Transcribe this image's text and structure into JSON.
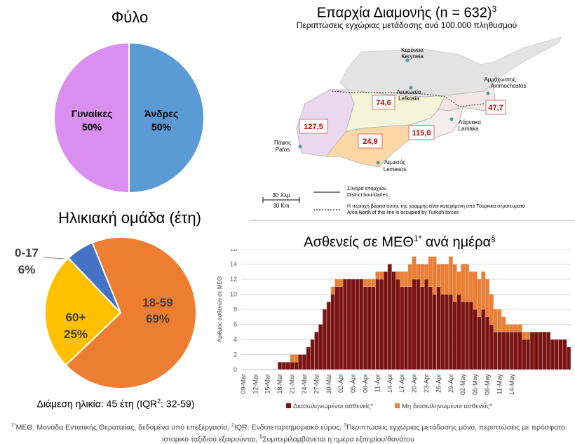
{
  "sex_panel": {
    "title": "Φύλο",
    "chart_data": {
      "type": "pie",
      "slices": [
        {
          "label": "Άνδρες",
          "value": 50,
          "pct_label": "50%",
          "color": "#5b9bd5"
        },
        {
          "label": "Γυναίκες",
          "value": 50,
          "pct_label": "50%",
          "color": "#da8ff0"
        }
      ]
    }
  },
  "age_panel": {
    "title": "Ηλικιακή ομάδα (έτη)",
    "chart_data": {
      "type": "pie",
      "slices": [
        {
          "label": "18-59",
          "value": 69,
          "pct_label": "69%",
          "color": "#ed7d31"
        },
        {
          "label": "60+",
          "value": 25,
          "pct_label": "25%",
          "color": "#ffc000"
        },
        {
          "label": "0-17",
          "value": 6,
          "pct_label": "6%",
          "color": "#4472c4"
        }
      ]
    },
    "median_text": "Διάμεση ηλικία: 45 έτη (IQR",
    "median_sup": "2",
    "median_tail": ": 32-59)"
  },
  "map_panel": {
    "title": "Επαρχία Διαμονής (n = 632)",
    "title_sup": "3",
    "subtitle": "Περιπτώσεις εγχώριας μετάδοσης ανά 100.000 πληθυσμού",
    "districts": [
      {
        "name_gr": "Κερύνεια",
        "name_en": "Keryneia",
        "rate": ""
      },
      {
        "name_gr": "Λευκωσία",
        "name_en": "Lefkosia",
        "rate": "74,6"
      },
      {
        "name_gr": "Αμμόχωστος",
        "name_en": "Ammochostos",
        "rate": "47,7"
      },
      {
        "name_gr": "Λάρνακα",
        "name_en": "Larnaka",
        "rate": "115,0"
      },
      {
        "name_gr": "Λεμεσός",
        "name_en": "Lemesos",
        "rate": "24,9"
      },
      {
        "name_gr": "Πάφος",
        "name_en": "Pafos",
        "rate": "127,5"
      }
    ],
    "scale_km_gr": "30 Χλμ",
    "scale_km_en": "30 Km",
    "legend_boundary_gr": "Σύνορα επαρχιών",
    "legend_boundary_en": "District boundaries",
    "legend_occupied_gr": "Η περιοχή βόρεια αυτής της γραμμής είναι κατεχόμενη από Τουρκικά στρατεύματα",
    "legend_occupied_en": "Area North of this line is occupied by Turkish forces"
  },
  "icu_panel": {
    "title": "Ασθενείς σε ΜΕΘ",
    "title_sup": "1*",
    "title_tail": " ανά ημέρα",
    "title_sup2": "§",
    "chart_data": {
      "type": "bar",
      "stacked": true,
      "ylabel": "Αριθμός ασθενών σε ΜΕΘ",
      "ylim": [
        0,
        16
      ],
      "yticks": [
        0,
        2,
        4,
        6,
        8,
        10,
        12,
        14,
        16
      ],
      "xtick_labels": [
        "09-Mar",
        "12-Mar",
        "15-Mar",
        "18-Mar",
        "21-Mar",
        "24-Mar",
        "27-Mar",
        "30-Mar",
        "02-Apr",
        "05-Apr",
        "08-Apr",
        "11-Apr",
        "14-Apr",
        "17-Apr",
        "20-Apr",
        "23-Apr",
        "26-Apr",
        "29-Apr",
        "02-May",
        "05-May",
        "08-May",
        "11-May",
        "14-May"
      ],
      "legend_position": "bottom",
      "series": [
        {
          "name": "Διασωληνωμένοι ασθενείς*",
          "color": "#7b1212",
          "values": [
            0,
            0,
            0,
            0,
            0,
            0,
            0,
            0,
            0,
            1,
            1,
            1,
            1,
            1,
            2,
            2,
            3,
            4,
            5,
            6,
            8,
            9,
            10,
            11,
            11,
            12,
            12,
            12,
            12,
            12,
            11,
            11,
            11,
            12,
            12,
            13,
            14,
            13,
            12,
            11,
            11,
            11,
            12,
            12,
            11,
            12,
            11,
            10,
            11,
            10,
            10,
            10,
            9,
            10,
            9,
            9,
            9,
            8,
            7,
            8,
            7,
            6,
            5,
            5,
            5,
            5,
            5,
            5,
            5,
            4,
            4,
            5,
            5,
            5,
            5,
            5,
            4,
            4,
            4,
            4,
            3
          ]
        },
        {
          "name": "Μη διασωληνωμένοι ασθενείς*",
          "color": "#ed7d31",
          "values": [
            0,
            0,
            0,
            0,
            0,
            0,
            0,
            0,
            0,
            0,
            0,
            0,
            1,
            1,
            0,
            0,
            0,
            0,
            0,
            0,
            0,
            0,
            1,
            1,
            1,
            0,
            0,
            0,
            0,
            0,
            1,
            1,
            1,
            1,
            1,
            0,
            0,
            0,
            1,
            2,
            2,
            3,
            3,
            2,
            3,
            2,
            4,
            5,
            3,
            4,
            4,
            5,
            5,
            3,
            5,
            5,
            4,
            5,
            5,
            5,
            5,
            4,
            3,
            3,
            2,
            1,
            1,
            1,
            1,
            1,
            1,
            0,
            0,
            0,
            0,
            0,
            0,
            0,
            0,
            0,
            0
          ]
        }
      ]
    }
  },
  "footnote": {
    "m1": "1*",
    "t1": "ΜΕΘ: Μονάδα Εντατικής Θεραπείας, δεδομένα υπό επεξεργασία, ",
    "m2": "2",
    "t2": "IQR: Ενδοτεταρτημοριακό εύρος, ",
    "m3": "3",
    "t3": "Περιπτώσεις εγχώριας μετάδοσης μόνο, περιπτώσεις με πρόσφατο ιστορικό ταξιδιού εξαιρούνται, ",
    "m4": "§",
    "t4": "Συμπεριλαμβάνεται η ημέρα εξιτηρίου/θανάτου"
  }
}
